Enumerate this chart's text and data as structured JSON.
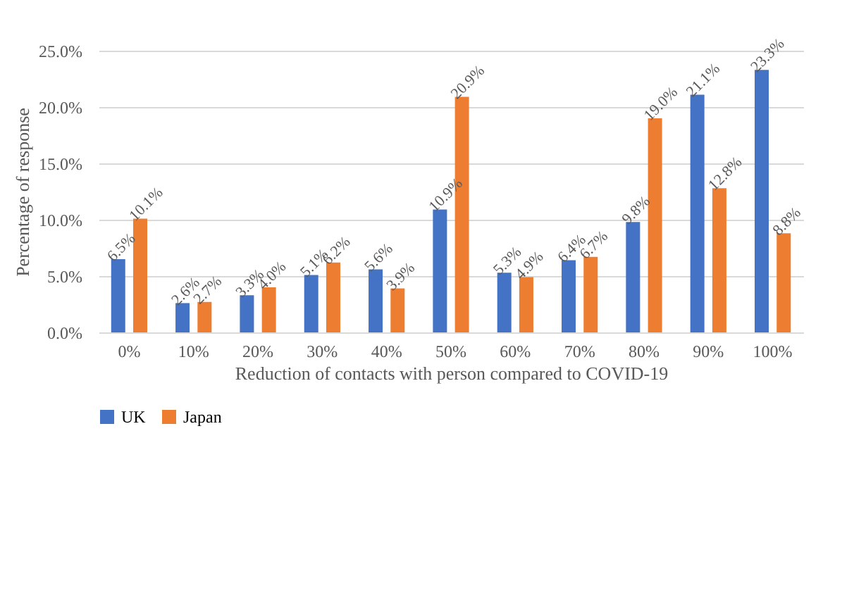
{
  "chart_data": {
    "type": "bar",
    "xlabel": "Reduction of  contacts with person compared to COVID-19",
    "ylabel": "Percentage of response",
    "categories": [
      "0%",
      "10%",
      "20%",
      "30%",
      "40%",
      "50%",
      "60%",
      "70%",
      "80%",
      "90%",
      "100%"
    ],
    "series": [
      {
        "name": "UK",
        "color": "#4472c4",
        "values": [
          6.5,
          2.6,
          3.3,
          5.1,
          5.6,
          10.9,
          5.3,
          6.4,
          9.8,
          21.1,
          23.3
        ],
        "value_labels": [
          "6.5%",
          "2.6%",
          "3.3%",
          "5.1%",
          "5.6%",
          "10.9%",
          "5.3%",
          "6.4%",
          "9.8%",
          "21.1%",
          "23.3%"
        ]
      },
      {
        "name": "Japan",
        "color": "#ed7d31",
        "values": [
          10.1,
          2.7,
          4.0,
          6.2,
          3.9,
          20.9,
          4.9,
          6.7,
          19.0,
          12.8,
          8.8
        ],
        "value_labels": [
          "10.1%",
          "2.7%",
          "4.0%",
          "6.2%",
          "3.9%",
          "20.9%",
          "4.9%",
          "6.7%",
          "19.0%",
          "12.8%",
          "8.8%"
        ]
      }
    ],
    "ylim": [
      0,
      25
    ],
    "yticks": [
      {
        "value": 0,
        "label": "0.0%"
      },
      {
        "value": 5,
        "label": "5.0%"
      },
      {
        "value": 10,
        "label": "10.0%"
      },
      {
        "value": 15,
        "label": "15.0%"
      },
      {
        "value": 20,
        "label": "20.0%"
      },
      {
        "value": 25,
        "label": "25.0%"
      }
    ],
    "grid": "y",
    "legend": "bottom"
  }
}
